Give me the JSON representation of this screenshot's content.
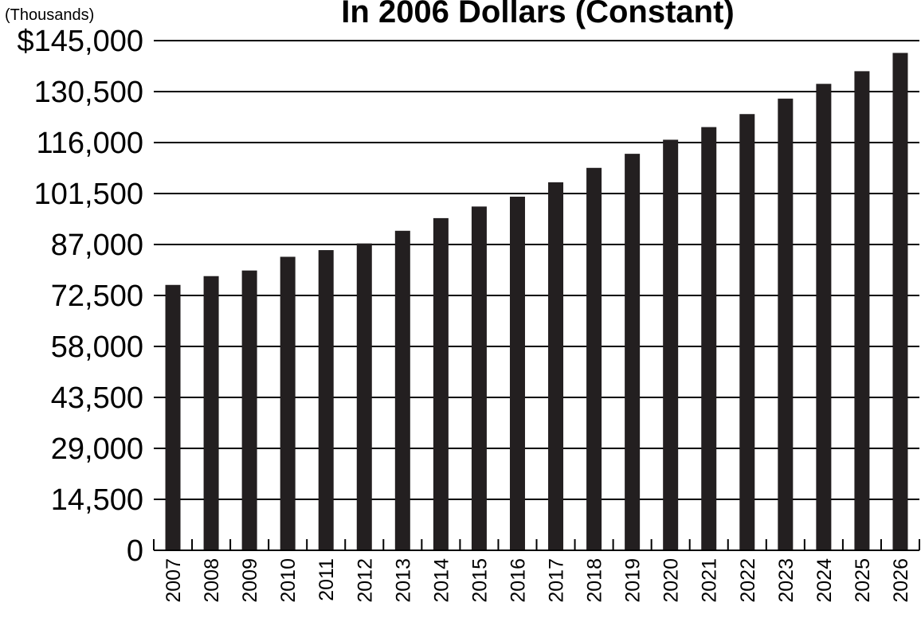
{
  "chart_data": {
    "type": "bar",
    "title": "In 2006 Dollars (Constant)",
    "units_label": "(Thousands)",
    "xlabel": "",
    "ylabel": "",
    "categories": [
      "2007",
      "2008",
      "2009",
      "2010",
      "2011",
      "2012",
      "2013",
      "2014",
      "2015",
      "2016",
      "2017",
      "2018",
      "2019",
      "2020",
      "2021",
      "2022",
      "2023",
      "2024",
      "2025",
      "2026"
    ],
    "values": [
      75500,
      78000,
      79600,
      83500,
      85400,
      87300,
      90900,
      94500,
      97800,
      100600,
      104700,
      108800,
      112800,
      116800,
      120400,
      124100,
      128500,
      132700,
      136300,
      141500
    ],
    "ylim": [
      0,
      145000
    ],
    "yticks": [
      0,
      14500,
      29000,
      43500,
      58000,
      72500,
      87000,
      101500,
      116000,
      130500,
      145000
    ],
    "ytick_labels": [
      "0",
      "14,500",
      "29,000",
      "43,500",
      "58,000",
      "72,500",
      "87,000",
      "101,500",
      "116,000",
      "130,500",
      "$145,000"
    ],
    "grid": true,
    "legend": "none",
    "bar_color": "#231f20"
  }
}
